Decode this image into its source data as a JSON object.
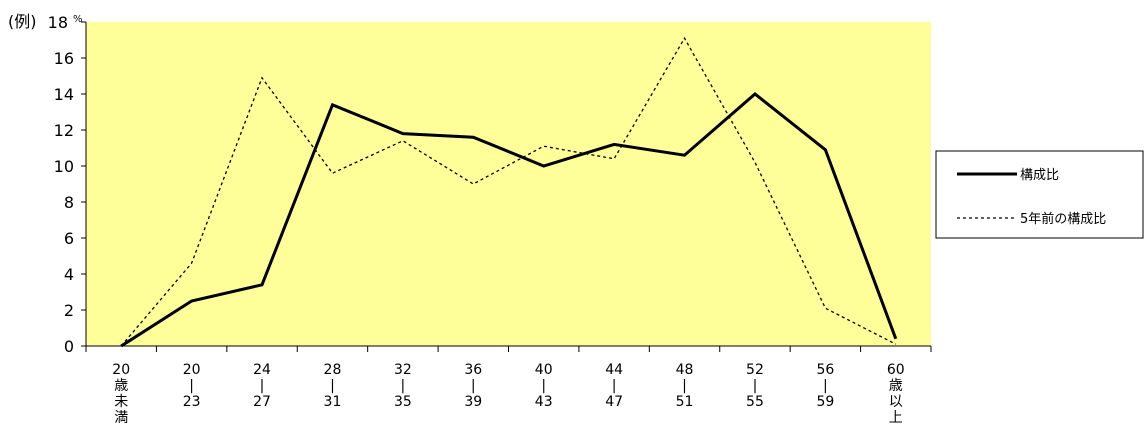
{
  "chart_data": {
    "type": "line",
    "y_unit_label": "(例)",
    "y_percent_symbol": "%",
    "ylim": [
      0,
      18
    ],
    "yticks": [
      0,
      2,
      4,
      6,
      8,
      10,
      12,
      14,
      16,
      18
    ],
    "grid": false,
    "plot_background": "#FFFF99",
    "legend_position": "right",
    "categories": [
      [
        "20",
        "歳",
        "未",
        "満"
      ],
      [
        "20",
        "|",
        "23"
      ],
      [
        "24",
        "|",
        "27"
      ],
      [
        "28",
        "|",
        "31"
      ],
      [
        "32",
        "|",
        "35"
      ],
      [
        "36",
        "|",
        "39"
      ],
      [
        "40",
        "|",
        "43"
      ],
      [
        "44",
        "|",
        "47"
      ],
      [
        "48",
        "|",
        "51"
      ],
      [
        "52",
        "|",
        "55"
      ],
      [
        "56",
        "|",
        "59"
      ],
      [
        "60",
        "歳",
        "以",
        "上"
      ]
    ],
    "series": [
      {
        "name": "構成比",
        "style": "solid",
        "color": "#000000",
        "values": [
          0.0,
          2.5,
          3.4,
          13.4,
          11.8,
          11.6,
          10.0,
          11.2,
          10.6,
          14.0,
          10.9,
          0.4
        ]
      },
      {
        "name": "5年前の構成比",
        "style": "dotted",
        "color": "#000000",
        "values": [
          0.0,
          4.6,
          14.9,
          9.6,
          11.4,
          9.0,
          11.1,
          10.4,
          17.1,
          10.2,
          2.1,
          0.1
        ]
      }
    ]
  }
}
